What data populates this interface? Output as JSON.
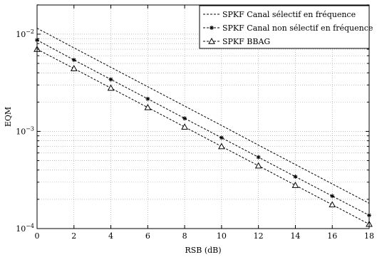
{
  "chart_data": {
    "type": "line",
    "title": "",
    "xlabel": "RSB (dB)",
    "ylabel": "EQM",
    "xlim": [
      0,
      18
    ],
    "ylim": [
      0.0001,
      0.02
    ],
    "yscale": "log",
    "grid": true,
    "legend_position": "top-right",
    "x": [
      0,
      2,
      4,
      6,
      8,
      10,
      12,
      14,
      16,
      18
    ],
    "x_tick_labels": [
      "0",
      "2",
      "4",
      "6",
      "8",
      "10",
      "12",
      "14",
      "16",
      "18"
    ],
    "y_ticks": [
      {
        "value": 0.0001,
        "base": "10",
        "exp": "−4"
      },
      {
        "value": 0.001,
        "base": "10",
        "exp": "−3"
      },
      {
        "value": 0.01,
        "base": "10",
        "exp": "−2"
      }
    ],
    "series": [
      {
        "name": "SPKF Canal sélectif en fréquence",
        "marker": "none",
        "color": "#000000",
        "values": [
          0.0115,
          0.00723,
          0.00456,
          0.00288,
          0.00182,
          0.00115,
          0.000722,
          0.000456,
          0.000288,
          0.000182
        ]
      },
      {
        "name": "SPKF Canal non sélectif en fréquence",
        "marker": "star",
        "color": "#000000",
        "values": [
          0.0087,
          0.00543,
          0.00342,
          0.00216,
          0.00136,
          0.00086,
          0.000542,
          0.000342,
          0.000216,
          0.000137
        ]
      },
      {
        "name": "SPKF BBAG",
        "marker": "triangle",
        "color": "#000000",
        "values": [
          0.007,
          0.00443,
          0.00279,
          0.00176,
          0.00111,
          0.0007,
          0.000443,
          0.000279,
          0.000176,
          0.000111
        ]
      }
    ]
  }
}
